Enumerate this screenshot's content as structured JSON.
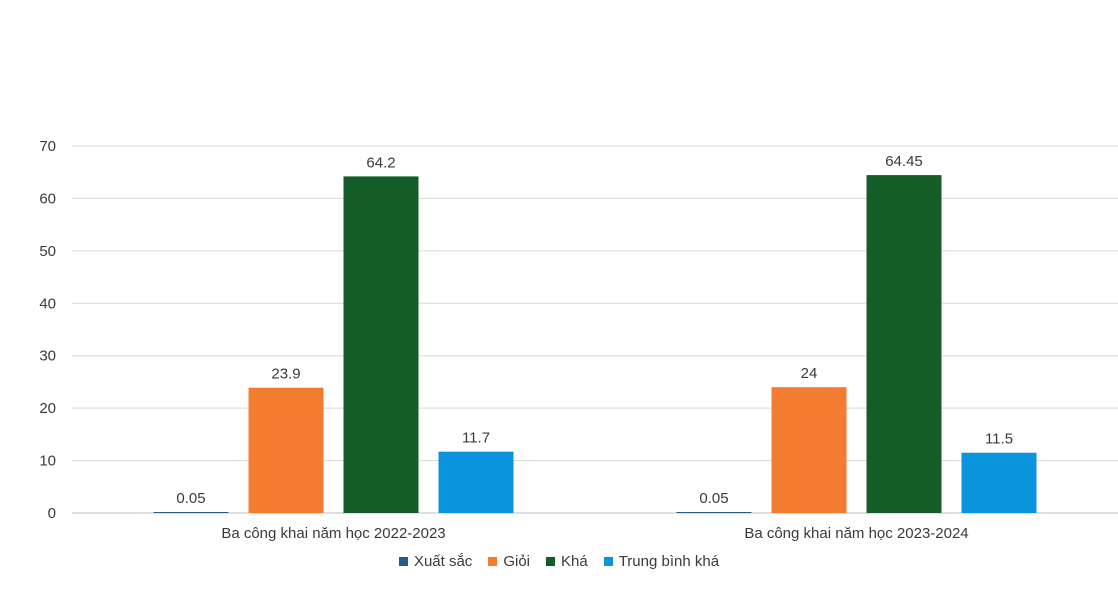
{
  "chart_data": {
    "type": "bar",
    "categories": [
      "Ba công khai năm học 2022-2023",
      "Ba công khai năm học 2023-2024"
    ],
    "series": [
      {
        "name": "Xuất sắc",
        "color": "#1f5c8b",
        "values": [
          0.05,
          0.05
        ],
        "labels": [
          "0.05",
          "0.05"
        ]
      },
      {
        "name": "Giỏi",
        "color": "#f47c30",
        "values": [
          23.9,
          24
        ],
        "labels": [
          "23.9",
          "24"
        ]
      },
      {
        "name": "Khá",
        "color": "#145c28",
        "values": [
          64.2,
          64.45
        ],
        "labels": [
          "64.2",
          "64.45"
        ]
      },
      {
        "name": "Trung bình khá",
        "color": "#0b94de",
        "values": [
          11.7,
          11.5
        ],
        "labels": [
          "11.7",
          "11.5"
        ]
      }
    ],
    "ylim": [
      0,
      70
    ],
    "yticks": [
      "0",
      "10",
      "20",
      "30",
      "40",
      "50",
      "60",
      "70"
    ],
    "grid": true,
    "legend": "bottom"
  }
}
